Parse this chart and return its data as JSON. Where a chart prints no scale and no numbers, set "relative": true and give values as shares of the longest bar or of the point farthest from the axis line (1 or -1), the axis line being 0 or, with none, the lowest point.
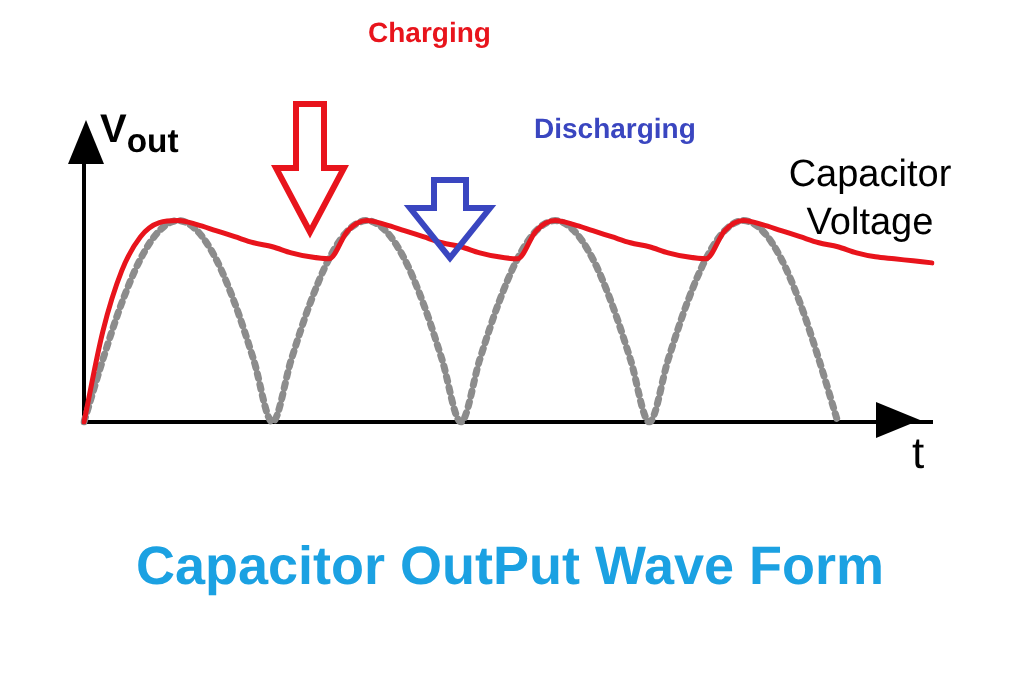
{
  "chart_data": {
    "type": "line",
    "relative": true,
    "title": "Capacitor OutPut Wave Form",
    "xlabel": "t",
    "ylabel": "V$_{out}$",
    "annotations": [
      "Charging",
      "Discharging"
    ],
    "categories": [
      null,
      null,
      null,
      null,
      null,
      null,
      null,
      null,
      null,
      null,
      null,
      null,
      null,
      null,
      null,
      null,
      null,
      null,
      null,
      null,
      null,
      null,
      null,
      null,
      null,
      null,
      null,
      null,
      null,
      null,
      null,
      null,
      null,
      null,
      null,
      null,
      null,
      null,
      null,
      null,
      null,
      null,
      null,
      null,
      null,
      null
    ],
    "series": [
      {
        "name": "Capacitor Voltage",
        "color": "#e8141c",
        "line_style": "solid",
        "values": [
          0,
          0.45,
          0.75,
          0.92,
          0.99,
          1,
          0.98,
          0.95,
          0.92,
          0.89,
          0.87,
          0.84,
          0.82,
          0.81,
          0.95,
          1,
          0.98,
          0.95,
          0.92,
          0.89,
          0.87,
          0.84,
          0.82,
          0.81,
          0.95,
          1,
          0.98,
          0.95,
          0.92,
          0.89,
          0.87,
          0.84,
          0.82,
          0.81,
          0.95,
          1,
          0.98,
          0.95,
          0.92,
          0.89,
          0.87,
          0.84,
          0.82,
          0.81,
          0.8,
          0.79
        ]
      },
      {
        "color": "#8c8c8c",
        "line_style": "dotted",
        "values": [
          0,
          0.31,
          0.59,
          0.81,
          0.95,
          1,
          0.95,
          0.81,
          0.59,
          0.31,
          0,
          0.31,
          0.59,
          0.81,
          0.95,
          1,
          0.95,
          0.81,
          0.59,
          0.31,
          0,
          0.31,
          0.59,
          0.81,
          0.95,
          1,
          0.95,
          0.81,
          0.59,
          0.31,
          0,
          0.31,
          0.59,
          0.81,
          0.95,
          1,
          0.95,
          0.81,
          0.59,
          0.31,
          0,
          null,
          null,
          null,
          null,
          null
        ]
      }
    ],
    "marker": "none",
    "grid": false,
    "legend": false
  }
}
